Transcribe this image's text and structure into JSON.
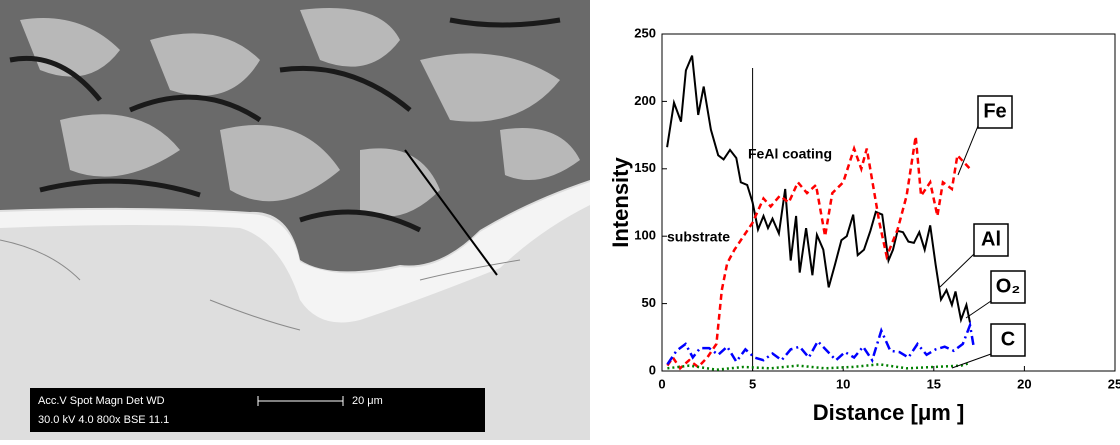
{
  "micrograph": {
    "info_labels": "Acc.V  Spot Magn    Det  WD",
    "info_values": "30.0 kV 4.0  800x     BSE 11.1",
    "scale_label": "20 μm"
  },
  "chart_data": {
    "type": "line",
    "xlabel": "Distance [μm ]",
    "ylabel": "Intensity",
    "xlim": [
      0,
      25
    ],
    "xticks": [
      0,
      5,
      10,
      15,
      20,
      25
    ],
    "ylim": [
      0,
      250
    ],
    "yticks": [
      0,
      50,
      100,
      150,
      200,
      250
    ],
    "divider_x": 5,
    "annotations": [
      "FeAl coating",
      "substrate"
    ],
    "series": [
      {
        "name": "Fe",
        "color": "#000000",
        "dash": "solid",
        "x": [
          0.28,
          0.66,
          1.05,
          1.32,
          1.66,
          2.0,
          2.3,
          2.7,
          3.1,
          3.4,
          3.75,
          4.1,
          4.35,
          4.7,
          5.0,
          5.3,
          5.6,
          5.85,
          6.1,
          6.45,
          6.8,
          7.1,
          7.4,
          7.6,
          7.95,
          8.3,
          8.55,
          8.9,
          9.2,
          9.55,
          9.9,
          10.2,
          10.55,
          10.8,
          11.15,
          11.5,
          11.8,
          12.15,
          12.5,
          12.75,
          13.0,
          13.3,
          13.6,
          13.9,
          14.2,
          14.5,
          14.8,
          15.1,
          15.4,
          15.7,
          16.0,
          16.2,
          16.5,
          16.8,
          17.0
        ],
        "values": [
          166,
          199,
          185,
          223,
          234,
          190,
          211,
          179,
          160,
          157,
          164,
          158,
          140,
          138,
          125,
          105,
          115,
          106,
          113,
          102,
          135,
          82,
          115,
          73,
          106,
          71,
          101,
          90,
          62,
          79,
          97,
          100,
          116,
          86,
          90,
          104,
          118,
          116,
          82,
          90,
          104,
          103,
          96,
          95,
          103,
          90,
          108,
          79,
          53,
          60,
          49,
          59,
          38,
          49,
          36
        ]
      },
      {
        "name": "Al",
        "color": "#ff0000",
        "dash": "dashed",
        "x": [
          0.3,
          0.6,
          1.0,
          1.5,
          2.0,
          2.5,
          3.0,
          3.3,
          3.6,
          4.0,
          4.5,
          5.0,
          5.6,
          6.0,
          6.5,
          7.0,
          7.5,
          8.0,
          8.5,
          9.0,
          9.4,
          10.0,
          10.6,
          11.0,
          11.3,
          12.0,
          12.4,
          13.0,
          13.5,
          14.0,
          14.3,
          14.8,
          15.2,
          15.5,
          16.0,
          16.3,
          17.0
        ],
        "values": [
          4,
          10,
          2,
          8,
          3,
          10,
          20,
          60,
          80,
          90,
          100,
          110,
          128,
          122,
          130,
          125,
          140,
          132,
          138,
          100,
          132,
          140,
          165,
          150,
          165,
          110,
          85,
          105,
          130,
          174,
          130,
          140,
          115,
          140,
          135,
          160,
          150
        ]
      },
      {
        "name": "O₂",
        "color": "#0000ff",
        "dash": "dashdot",
        "x": [
          0.3,
          0.8,
          1.3,
          1.7,
          2.1,
          2.6,
          3.1,
          3.6,
          4.1,
          4.6,
          5.1,
          5.6,
          6.1,
          6.6,
          7.1,
          7.6,
          8.1,
          8.6,
          9.1,
          9.6,
          10.1,
          10.6,
          11.1,
          11.6,
          12.1,
          12.6,
          13.1,
          13.6,
          14.1,
          14.6,
          15.1,
          15.6,
          16.1,
          16.6,
          17.0,
          17.2
        ],
        "values": [
          5,
          15,
          20,
          10,
          17,
          17,
          12,
          18,
          7,
          16,
          10,
          8,
          13,
          8,
          16,
          18,
          10,
          22,
          15,
          8,
          14,
          10,
          18,
          8,
          30,
          15,
          14,
          10,
          20,
          12,
          16,
          18,
          15,
          20,
          34,
          18
        ]
      },
      {
        "name": "C",
        "color": "#008000",
        "dash": "dotted",
        "x": [
          0.3,
          1.5,
          3.0,
          4.5,
          6.0,
          7.5,
          9.0,
          10.5,
          12.0,
          13.5,
          15.0,
          16.5,
          17.0
        ],
        "values": [
          2,
          4,
          1,
          3,
          2,
          4,
          2,
          3,
          5,
          2,
          3,
          4,
          6
        ]
      }
    ]
  }
}
